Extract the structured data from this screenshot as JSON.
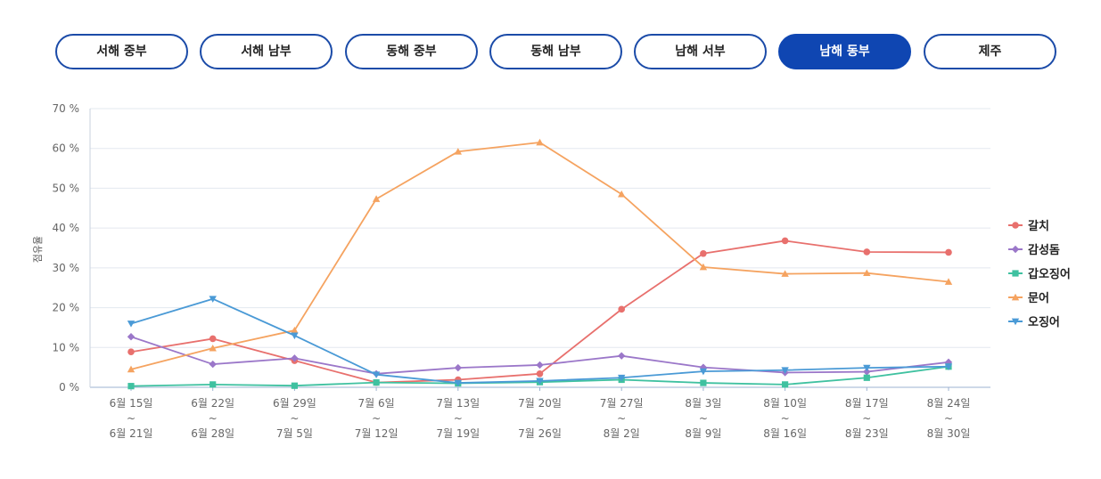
{
  "tabs": [
    {
      "label": "서해 중부",
      "active": false
    },
    {
      "label": "서해 남부",
      "active": false
    },
    {
      "label": "동해 중부",
      "active": false
    },
    {
      "label": "동해 남부",
      "active": false
    },
    {
      "label": "남해 서부",
      "active": false
    },
    {
      "label": "남해 동부",
      "active": true
    },
    {
      "label": "제주",
      "active": false
    }
  ],
  "chart_data": {
    "type": "line",
    "ylabel": "점유율",
    "ylim": [
      0,
      70
    ],
    "yticks": [
      0,
      10,
      20,
      30,
      40,
      50,
      60,
      70
    ],
    "ytick_labels": [
      "0 %",
      "10 %",
      "20 %",
      "30 %",
      "40 %",
      "50 %",
      "60 %",
      "70 %"
    ],
    "grid": true,
    "legend_position": "right",
    "categories": [
      [
        "6월 15일",
        "~",
        "6월 21일"
      ],
      [
        "6월 22일",
        "~",
        "6월 28일"
      ],
      [
        "6월 29일",
        "~",
        "7월 5일"
      ],
      [
        "7월 6일",
        "~",
        "7월 12일"
      ],
      [
        "7월 13일",
        "~",
        "7월 19일"
      ],
      [
        "7월 20일",
        "~",
        "7월 26일"
      ],
      [
        "7월 27일",
        "~",
        "8월 2일"
      ],
      [
        "8월 3일",
        "~",
        "8월 9일"
      ],
      [
        "8월 10일",
        "~",
        "8월 16일"
      ],
      [
        "8월 17일",
        "~",
        "8월 23일"
      ],
      [
        "8월 24일",
        "~",
        "8월 30일"
      ]
    ],
    "series": [
      {
        "name": "갈치",
        "color": "#e8706d",
        "marker": "circle",
        "values": [
          8.9,
          12.2,
          6.7,
          1.2,
          1.9,
          3.4,
          19.6,
          33.6,
          36.8,
          34.0,
          33.9
        ]
      },
      {
        "name": "감성돔",
        "color": "#9b77c9",
        "marker": "diamond",
        "values": [
          12.7,
          5.8,
          7.3,
          3.4,
          4.9,
          5.6,
          7.9,
          5.0,
          3.7,
          3.9,
          6.3
        ]
      },
      {
        "name": "갑오징어",
        "color": "#3fc1a0",
        "marker": "square",
        "values": [
          0.3,
          0.7,
          0.4,
          1.2,
          1.0,
          1.3,
          1.9,
          1.1,
          0.7,
          2.4,
          5.2
        ]
      },
      {
        "name": "문어",
        "color": "#f5a360",
        "marker": "triangle-up",
        "values": [
          4.5,
          9.8,
          14.3,
          47.3,
          59.2,
          61.5,
          48.5,
          30.2,
          28.5,
          28.7,
          26.5
        ]
      },
      {
        "name": "오징어",
        "color": "#4a9ad6",
        "marker": "triangle-down",
        "values": [
          16.0,
          22.2,
          13.0,
          3.2,
          1.1,
          1.6,
          2.4,
          4.0,
          4.3,
          4.9,
          5.2
        ]
      }
    ]
  }
}
